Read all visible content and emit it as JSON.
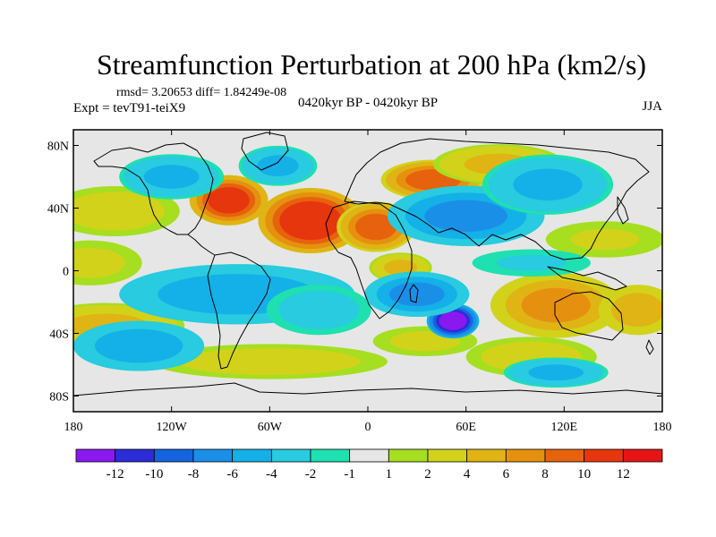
{
  "chart_data": {
    "type": "heatmap",
    "title": "Streamfunction Perturbation at 200 hPa (km2/s)",
    "stats_line": "rmsd= 3.20653 diff= 1.84249e-08",
    "experiment": "Expt = tevT91-teiX9",
    "period": "0420kyr BP - 0420kyr BP",
    "season": "JJA",
    "xlim": [
      -180,
      180
    ],
    "ylim": [
      -90,
      90
    ],
    "x_ticks": [
      {
        "value": -180,
        "label": "180"
      },
      {
        "value": -120,
        "label": "120W"
      },
      {
        "value": -60,
        "label": "60W"
      },
      {
        "value": 0,
        "label": "0"
      },
      {
        "value": 60,
        "label": "60E"
      },
      {
        "value": 120,
        "label": "120E"
      },
      {
        "value": 180,
        "label": "180"
      }
    ],
    "y_ticks": [
      {
        "value": 80,
        "label": "80N"
      },
      {
        "value": 40,
        "label": "40N"
      },
      {
        "value": 0,
        "label": "0"
      },
      {
        "value": -40,
        "label": "40S"
      },
      {
        "value": -80,
        "label": "80S"
      }
    ],
    "colorbar": {
      "colors": [
        "#8a19ef",
        "#2c2cd8",
        "#1464e0",
        "#1a8fe8",
        "#14b0e8",
        "#28cbe0",
        "#1ee0b0",
        "#e6e6e6",
        "#a6de20",
        "#d2d21a",
        "#e0b414",
        "#e69010",
        "#e6620c",
        "#e6360e",
        "#e61414"
      ],
      "labels": [
        "-12",
        "-10",
        "-8",
        "-6",
        "-4",
        "-2",
        "-1",
        "1",
        "2",
        "4",
        "6",
        "8",
        "10",
        "12"
      ]
    },
    "anomalies": [
      {
        "lon": -85,
        "lat": 45,
        "value": 10,
        "slon": 15,
        "slat": 10
      },
      {
        "lon": -35,
        "lat": 32,
        "value": 11,
        "slon": 20,
        "slat": 13
      },
      {
        "lon": 5,
        "lat": 28,
        "value": 8,
        "slon": 15,
        "slat": 10
      },
      {
        "lon": 40,
        "lat": 58,
        "value": 8,
        "slon": 20,
        "slat": 8
      },
      {
        "lon": 80,
        "lat": 68,
        "value": 4,
        "slon": 25,
        "slat": 8
      },
      {
        "lon": -155,
        "lat": 38,
        "value": 3,
        "slon": 25,
        "slat": 10
      },
      {
        "lon": -170,
        "lat": 5,
        "value": 2.5,
        "slon": 20,
        "slat": 9
      },
      {
        "lon": 115,
        "lat": -22,
        "value": 6,
        "slon": 25,
        "slat": 13
      },
      {
        "lon": 165,
        "lat": -25,
        "value": 5,
        "slon": 15,
        "slat": 10
      },
      {
        "lon": -160,
        "lat": -35,
        "value": 4,
        "slon": 30,
        "slat": 9
      },
      {
        "lon": 100,
        "lat": -55,
        "value": 3,
        "slon": 25,
        "slat": 8
      },
      {
        "lon": -60,
        "lat": -58,
        "value": 3,
        "slon": 45,
        "slat": 7
      },
      {
        "lon": 20,
        "lat": 2,
        "value": 4,
        "slon": 12,
        "slat": 6
      },
      {
        "lon": 35,
        "lat": -45,
        "value": 2.5,
        "slon": 20,
        "slat": 6
      },
      {
        "lon": 145,
        "lat": 20,
        "value": 2,
        "slon": 25,
        "slat": 8
      },
      {
        "lon": -120,
        "lat": 60,
        "value": -4,
        "slon": 20,
        "slat": 9
      },
      {
        "lon": -55,
        "lat": 67,
        "value": -4,
        "slon": 15,
        "slat": 8
      },
      {
        "lon": 60,
        "lat": 35,
        "value": -6,
        "slon": 30,
        "slat": 12
      },
      {
        "lon": 110,
        "lat": 55,
        "value": -4,
        "slon": 25,
        "slat": 12
      },
      {
        "lon": -80,
        "lat": -15,
        "value": -5,
        "slon": 45,
        "slat": 12
      },
      {
        "lon": -30,
        "lat": -25,
        "value": -3,
        "slon": 20,
        "slat": 10
      },
      {
        "lon": 52,
        "lat": -32,
        "value": -12,
        "slon": 10,
        "slat": 7
      },
      {
        "lon": 30,
        "lat": -15,
        "value": -6,
        "slon": 20,
        "slat": 9
      },
      {
        "lon": -140,
        "lat": -48,
        "value": -5,
        "slon": 25,
        "slat": 10
      },
      {
        "lon": 100,
        "lat": 5,
        "value": -2,
        "slon": 25,
        "slat": 6
      },
      {
        "lon": 115,
        "lat": -65,
        "value": -4,
        "slon": 20,
        "slat": 6
      }
    ]
  }
}
